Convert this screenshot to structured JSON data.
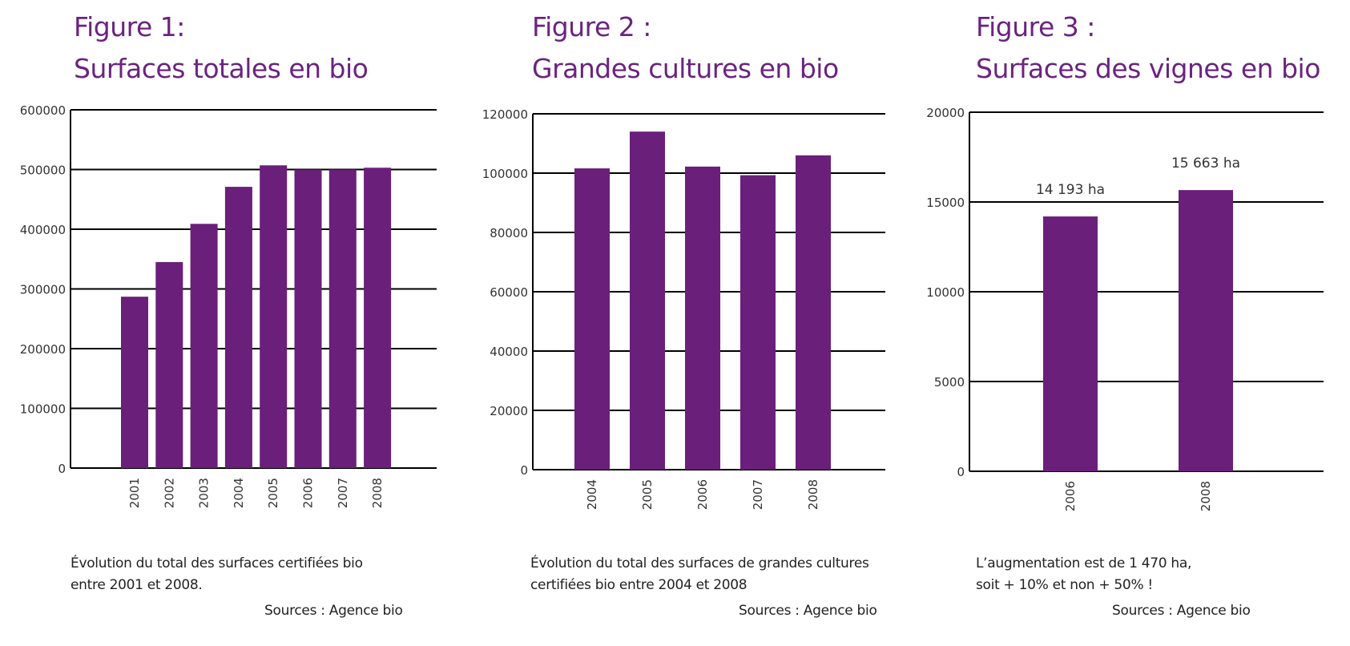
{
  "colors": {
    "title": "#6b2380",
    "bar": "#6a1f7a",
    "axis": "#000000",
    "text": "#222222"
  },
  "chart_data": [
    {
      "type": "bar",
      "figure_label": "Figure 1:",
      "title": "Surfaces totales en bio",
      "categories": [
        "2001",
        "2002",
        "2003",
        "2004",
        "2005",
        "2006",
        "2007",
        "2008"
      ],
      "values": [
        287000,
        345000,
        409000,
        471000,
        507000,
        500000,
        500000,
        503000
      ],
      "ylim": [
        0,
        600000
      ],
      "yticks": [
        0,
        100000,
        200000,
        300000,
        400000,
        500000,
        600000
      ],
      "xlabel": "",
      "ylabel": "",
      "grid": true,
      "data_labels": [],
      "caption": [
        "Évolution du total des surfaces certifiées bio",
        "entre 2001 et 2008."
      ],
      "source": "Sources : Agence bio"
    },
    {
      "type": "bar",
      "figure_label": "Figure 2 :",
      "title": "Grandes cultures en bio",
      "categories": [
        "2004",
        "2005",
        "2006",
        "2007",
        "2008"
      ],
      "values": [
        101600,
        114000,
        102200,
        99300,
        106000
      ],
      "ylim": [
        0,
        120000
      ],
      "yticks": [
        0,
        20000,
        40000,
        60000,
        80000,
        100000,
        120000
      ],
      "xlabel": "",
      "ylabel": "",
      "grid": true,
      "data_labels": [],
      "caption": [
        "Évolution du total des surfaces de grandes cultures",
        "certifiées bio entre 2004 et 2008"
      ],
      "source": "Sources : Agence bio"
    },
    {
      "type": "bar",
      "figure_label": "Figure 3 :",
      "title": "Surfaces des vignes en bio",
      "categories": [
        "2006",
        "2008"
      ],
      "values": [
        14193,
        15663
      ],
      "ylim": [
        0,
        20000
      ],
      "yticks": [
        0,
        5000,
        10000,
        15000,
        20000
      ],
      "xlabel": "",
      "ylabel": "",
      "grid": true,
      "data_labels": [
        "14 193 ha",
        "15 663 ha"
      ],
      "caption": [
        "L’augmentation est de 1 470 ha,",
        "soit + 10% et non + 50% !"
      ],
      "source": "Sources : Agence bio"
    }
  ]
}
